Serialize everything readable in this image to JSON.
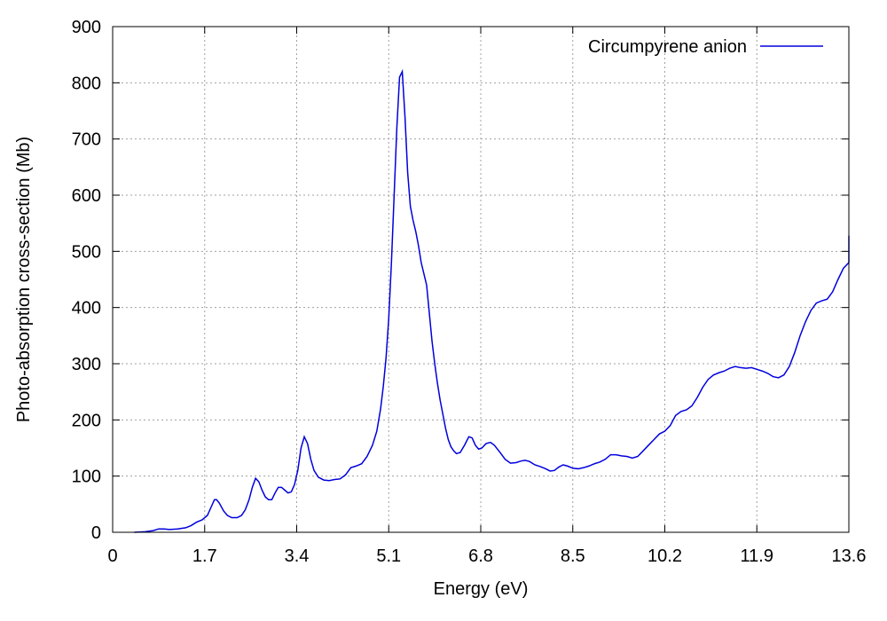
{
  "chart_data": {
    "type": "line",
    "xlabel": "Energy (eV)",
    "ylabel": "Photo-absorption cross-section (Mb)",
    "xlim": [
      0,
      13.6
    ],
    "ylim": [
      0,
      900
    ],
    "xticks": [
      "0",
      "1.7",
      "3.4",
      "5.1",
      "6.8",
      "8.5",
      "10.2",
      "11.9",
      "13.6"
    ],
    "yticks": [
      "0",
      "100",
      "200",
      "300",
      "400",
      "500",
      "600",
      "700",
      "800",
      "900"
    ],
    "grid": true,
    "legend_position": "top-right",
    "series": [
      {
        "name": "Circumpyrene anion",
        "color": "#0000dd",
        "points": [
          [
            0.4,
            0
          ],
          [
            0.6,
            1
          ],
          [
            0.75,
            3
          ],
          [
            0.85,
            6
          ],
          [
            0.95,
            6
          ],
          [
            1.05,
            5
          ],
          [
            1.2,
            6
          ],
          [
            1.35,
            8
          ],
          [
            1.45,
            12
          ],
          [
            1.55,
            18
          ],
          [
            1.65,
            22
          ],
          [
            1.75,
            30
          ],
          [
            1.82,
            45
          ],
          [
            1.88,
            58
          ],
          [
            1.92,
            58
          ],
          [
            1.97,
            52
          ],
          [
            2.05,
            38
          ],
          [
            2.12,
            30
          ],
          [
            2.2,
            26
          ],
          [
            2.3,
            26
          ],
          [
            2.38,
            30
          ],
          [
            2.45,
            40
          ],
          [
            2.52,
            58
          ],
          [
            2.58,
            80
          ],
          [
            2.64,
            96
          ],
          [
            2.7,
            90
          ],
          [
            2.76,
            75
          ],
          [
            2.82,
            63
          ],
          [
            2.88,
            58
          ],
          [
            2.94,
            58
          ],
          [
            3.0,
            70
          ],
          [
            3.06,
            80
          ],
          [
            3.12,
            80
          ],
          [
            3.18,
            75
          ],
          [
            3.24,
            70
          ],
          [
            3.3,
            72
          ],
          [
            3.36,
            85
          ],
          [
            3.42,
            110
          ],
          [
            3.48,
            150
          ],
          [
            3.54,
            170
          ],
          [
            3.6,
            158
          ],
          [
            3.66,
            130
          ],
          [
            3.72,
            110
          ],
          [
            3.8,
            98
          ],
          [
            3.9,
            93
          ],
          [
            4.0,
            92
          ],
          [
            4.1,
            94
          ],
          [
            4.2,
            95
          ],
          [
            4.3,
            102
          ],
          [
            4.4,
            115
          ],
          [
            4.5,
            118
          ],
          [
            4.6,
            122
          ],
          [
            4.7,
            135
          ],
          [
            4.8,
            155
          ],
          [
            4.88,
            180
          ],
          [
            4.95,
            220
          ],
          [
            5.0,
            260
          ],
          [
            5.05,
            310
          ],
          [
            5.1,
            380
          ],
          [
            5.15,
            480
          ],
          [
            5.2,
            600
          ],
          [
            5.25,
            720
          ],
          [
            5.3,
            810
          ],
          [
            5.35,
            820
          ],
          [
            5.4,
            740
          ],
          [
            5.45,
            640
          ],
          [
            5.5,
            580
          ],
          [
            5.55,
            555
          ],
          [
            5.6,
            535
          ],
          [
            5.65,
            510
          ],
          [
            5.7,
            480
          ],
          [
            5.75,
            460
          ],
          [
            5.8,
            440
          ],
          [
            5.85,
            390
          ],
          [
            5.9,
            340
          ],
          [
            5.95,
            300
          ],
          [
            6.0,
            265
          ],
          [
            6.05,
            235
          ],
          [
            6.1,
            210
          ],
          [
            6.15,
            185
          ],
          [
            6.2,
            165
          ],
          [
            6.25,
            152
          ],
          [
            6.3,
            145
          ],
          [
            6.35,
            140
          ],
          [
            6.42,
            142
          ],
          [
            6.5,
            155
          ],
          [
            6.58,
            170
          ],
          [
            6.64,
            168
          ],
          [
            6.7,
            155
          ],
          [
            6.76,
            148
          ],
          [
            6.82,
            150
          ],
          [
            6.9,
            158
          ],
          [
            6.98,
            160
          ],
          [
            7.05,
            155
          ],
          [
            7.15,
            143
          ],
          [
            7.25,
            130
          ],
          [
            7.35,
            123
          ],
          [
            7.45,
            124
          ],
          [
            7.55,
            127
          ],
          [
            7.62,
            128
          ],
          [
            7.7,
            126
          ],
          [
            7.8,
            120
          ],
          [
            7.9,
            117
          ],
          [
            8.0,
            113
          ],
          [
            8.08,
            109
          ],
          [
            8.16,
            110
          ],
          [
            8.24,
            116
          ],
          [
            8.32,
            120
          ],
          [
            8.4,
            118
          ],
          [
            8.5,
            114
          ],
          [
            8.6,
            113
          ],
          [
            8.7,
            115
          ],
          [
            8.8,
            118
          ],
          [
            8.9,
            122
          ],
          [
            9.0,
            125
          ],
          [
            9.1,
            130
          ],
          [
            9.2,
            138
          ],
          [
            9.3,
            138
          ],
          [
            9.4,
            136
          ],
          [
            9.5,
            135
          ],
          [
            9.6,
            132
          ],
          [
            9.7,
            135
          ],
          [
            9.8,
            145
          ],
          [
            9.9,
            155
          ],
          [
            10.0,
            165
          ],
          [
            10.1,
            175
          ],
          [
            10.2,
            180
          ],
          [
            10.3,
            190
          ],
          [
            10.4,
            208
          ],
          [
            10.5,
            215
          ],
          [
            10.6,
            218
          ],
          [
            10.7,
            225
          ],
          [
            10.8,
            240
          ],
          [
            10.9,
            258
          ],
          [
            11.0,
            272
          ],
          [
            11.1,
            280
          ],
          [
            11.2,
            284
          ],
          [
            11.3,
            287
          ],
          [
            11.4,
            292
          ],
          [
            11.5,
            295
          ],
          [
            11.6,
            293
          ],
          [
            11.7,
            292
          ],
          [
            11.8,
            293
          ],
          [
            11.9,
            290
          ],
          [
            12.0,
            287
          ],
          [
            12.1,
            283
          ],
          [
            12.2,
            277
          ],
          [
            12.3,
            275
          ],
          [
            12.4,
            280
          ],
          [
            12.5,
            295
          ],
          [
            12.6,
            320
          ],
          [
            12.7,
            350
          ],
          [
            12.8,
            375
          ],
          [
            12.9,
            395
          ],
          [
            13.0,
            408
          ],
          [
            13.1,
            412
          ],
          [
            13.2,
            415
          ],
          [
            13.3,
            428
          ],
          [
            13.4,
            450
          ],
          [
            13.5,
            470
          ],
          [
            13.6,
            480
          ],
          [
            13.7,
            492
          ],
          [
            13.8,
            508
          ],
          [
            13.9,
            520
          ],
          [
            13.95,
            528
          ]
        ]
      }
    ]
  }
}
